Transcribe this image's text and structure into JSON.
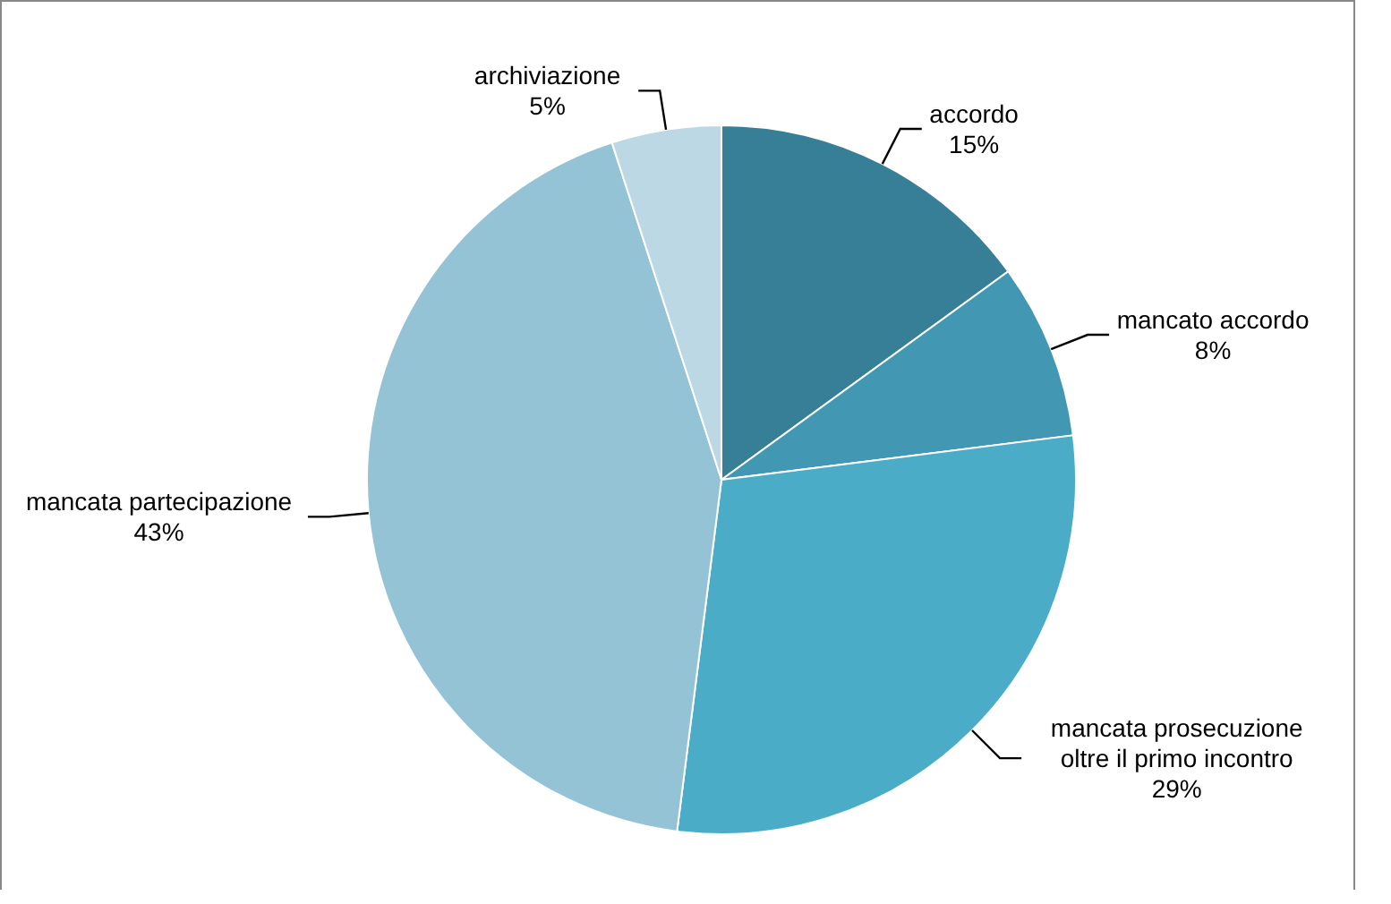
{
  "chart_data": {
    "type": "pie",
    "categories": [
      "accordo",
      "mancato accordo",
      "mancata prosecuzione oltre il primo incontro",
      "mancata partecipazione",
      "archiviazione"
    ],
    "values": [
      15,
      8,
      29,
      43,
      5
    ],
    "value_labels": [
      "15%",
      "8%",
      "29%",
      "43%",
      "5%"
    ],
    "colors": [
      "#377f96",
      "#4298b2",
      "#4aacc6",
      "#93c3d4",
      "#bcd8e4"
    ],
    "legend": false
  }
}
